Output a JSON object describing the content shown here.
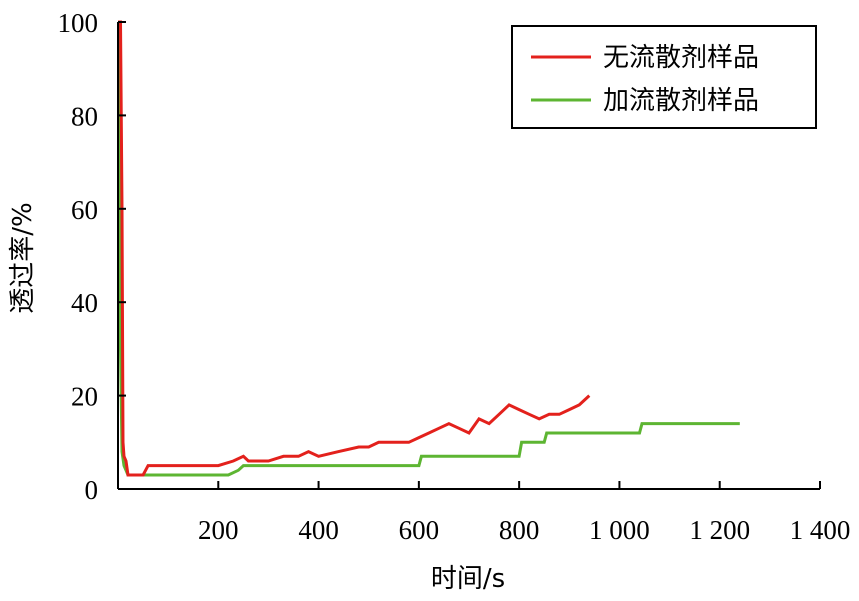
{
  "chart_data": {
    "type": "line",
    "xlabel": "时间/s",
    "ylabel": "透过率/%",
    "xlim": [
      0,
      1400
    ],
    "ylim": [
      0,
      100
    ],
    "x_ticks": [
      200,
      400,
      600,
      800,
      1000,
      1200,
      1400
    ],
    "x_tick_labels": [
      "200",
      "400",
      "600",
      "800",
      "1 000",
      "1 200",
      "1 400"
    ],
    "y_ticks": [
      0,
      20,
      40,
      60,
      80,
      100
    ],
    "y_tick_labels": [
      "0",
      "20",
      "40",
      "60",
      "80",
      "100"
    ],
    "legend_position": "top-right",
    "grid": false,
    "series": [
      {
        "name": "无流散剂样品",
        "color": "#e3211c",
        "points": [
          [
            0,
            100
          ],
          [
            5,
            100
          ],
          [
            8,
            60
          ],
          [
            10,
            10
          ],
          [
            12,
            7
          ],
          [
            16,
            6
          ],
          [
            20,
            3
          ],
          [
            30,
            3
          ],
          [
            50,
            3
          ],
          [
            60,
            5
          ],
          [
            80,
            5
          ],
          [
            100,
            5
          ],
          [
            150,
            5
          ],
          [
            200,
            5
          ],
          [
            230,
            6
          ],
          [
            250,
            7
          ],
          [
            260,
            6
          ],
          [
            300,
            6
          ],
          [
            330,
            7
          ],
          [
            360,
            7
          ],
          [
            380,
            8
          ],
          [
            400,
            7
          ],
          [
            440,
            8
          ],
          [
            480,
            9
          ],
          [
            500,
            9
          ],
          [
            520,
            10
          ],
          [
            560,
            10
          ],
          [
            580,
            10
          ],
          [
            600,
            11
          ],
          [
            620,
            12
          ],
          [
            640,
            13
          ],
          [
            660,
            14
          ],
          [
            680,
            13
          ],
          [
            700,
            12
          ],
          [
            720,
            15
          ],
          [
            740,
            14
          ],
          [
            760,
            16
          ],
          [
            780,
            18
          ],
          [
            800,
            17
          ],
          [
            820,
            16
          ],
          [
            840,
            15
          ],
          [
            860,
            16
          ],
          [
            880,
            16
          ],
          [
            900,
            17
          ],
          [
            920,
            18
          ],
          [
            940,
            20
          ]
        ]
      },
      {
        "name": "加流散剂样品",
        "color": "#5db532",
        "points": [
          [
            0,
            100
          ],
          [
            3,
            100
          ],
          [
            5,
            30
          ],
          [
            8,
            8
          ],
          [
            12,
            5
          ],
          [
            16,
            4
          ],
          [
            20,
            3
          ],
          [
            30,
            3
          ],
          [
            100,
            3
          ],
          [
            150,
            3
          ],
          [
            220,
            3
          ],
          [
            240,
            4
          ],
          [
            250,
            5
          ],
          [
            300,
            5
          ],
          [
            400,
            5
          ],
          [
            500,
            5
          ],
          [
            540,
            5
          ],
          [
            550,
            5
          ],
          [
            600,
            5
          ],
          [
            605,
            7
          ],
          [
            700,
            7
          ],
          [
            800,
            7
          ],
          [
            805,
            10
          ],
          [
            850,
            10
          ],
          [
            855,
            12
          ],
          [
            950,
            12
          ],
          [
            1000,
            12
          ],
          [
            1040,
            12
          ],
          [
            1045,
            14
          ],
          [
            1100,
            14
          ],
          [
            1200,
            14
          ],
          [
            1240,
            14
          ]
        ]
      }
    ]
  }
}
